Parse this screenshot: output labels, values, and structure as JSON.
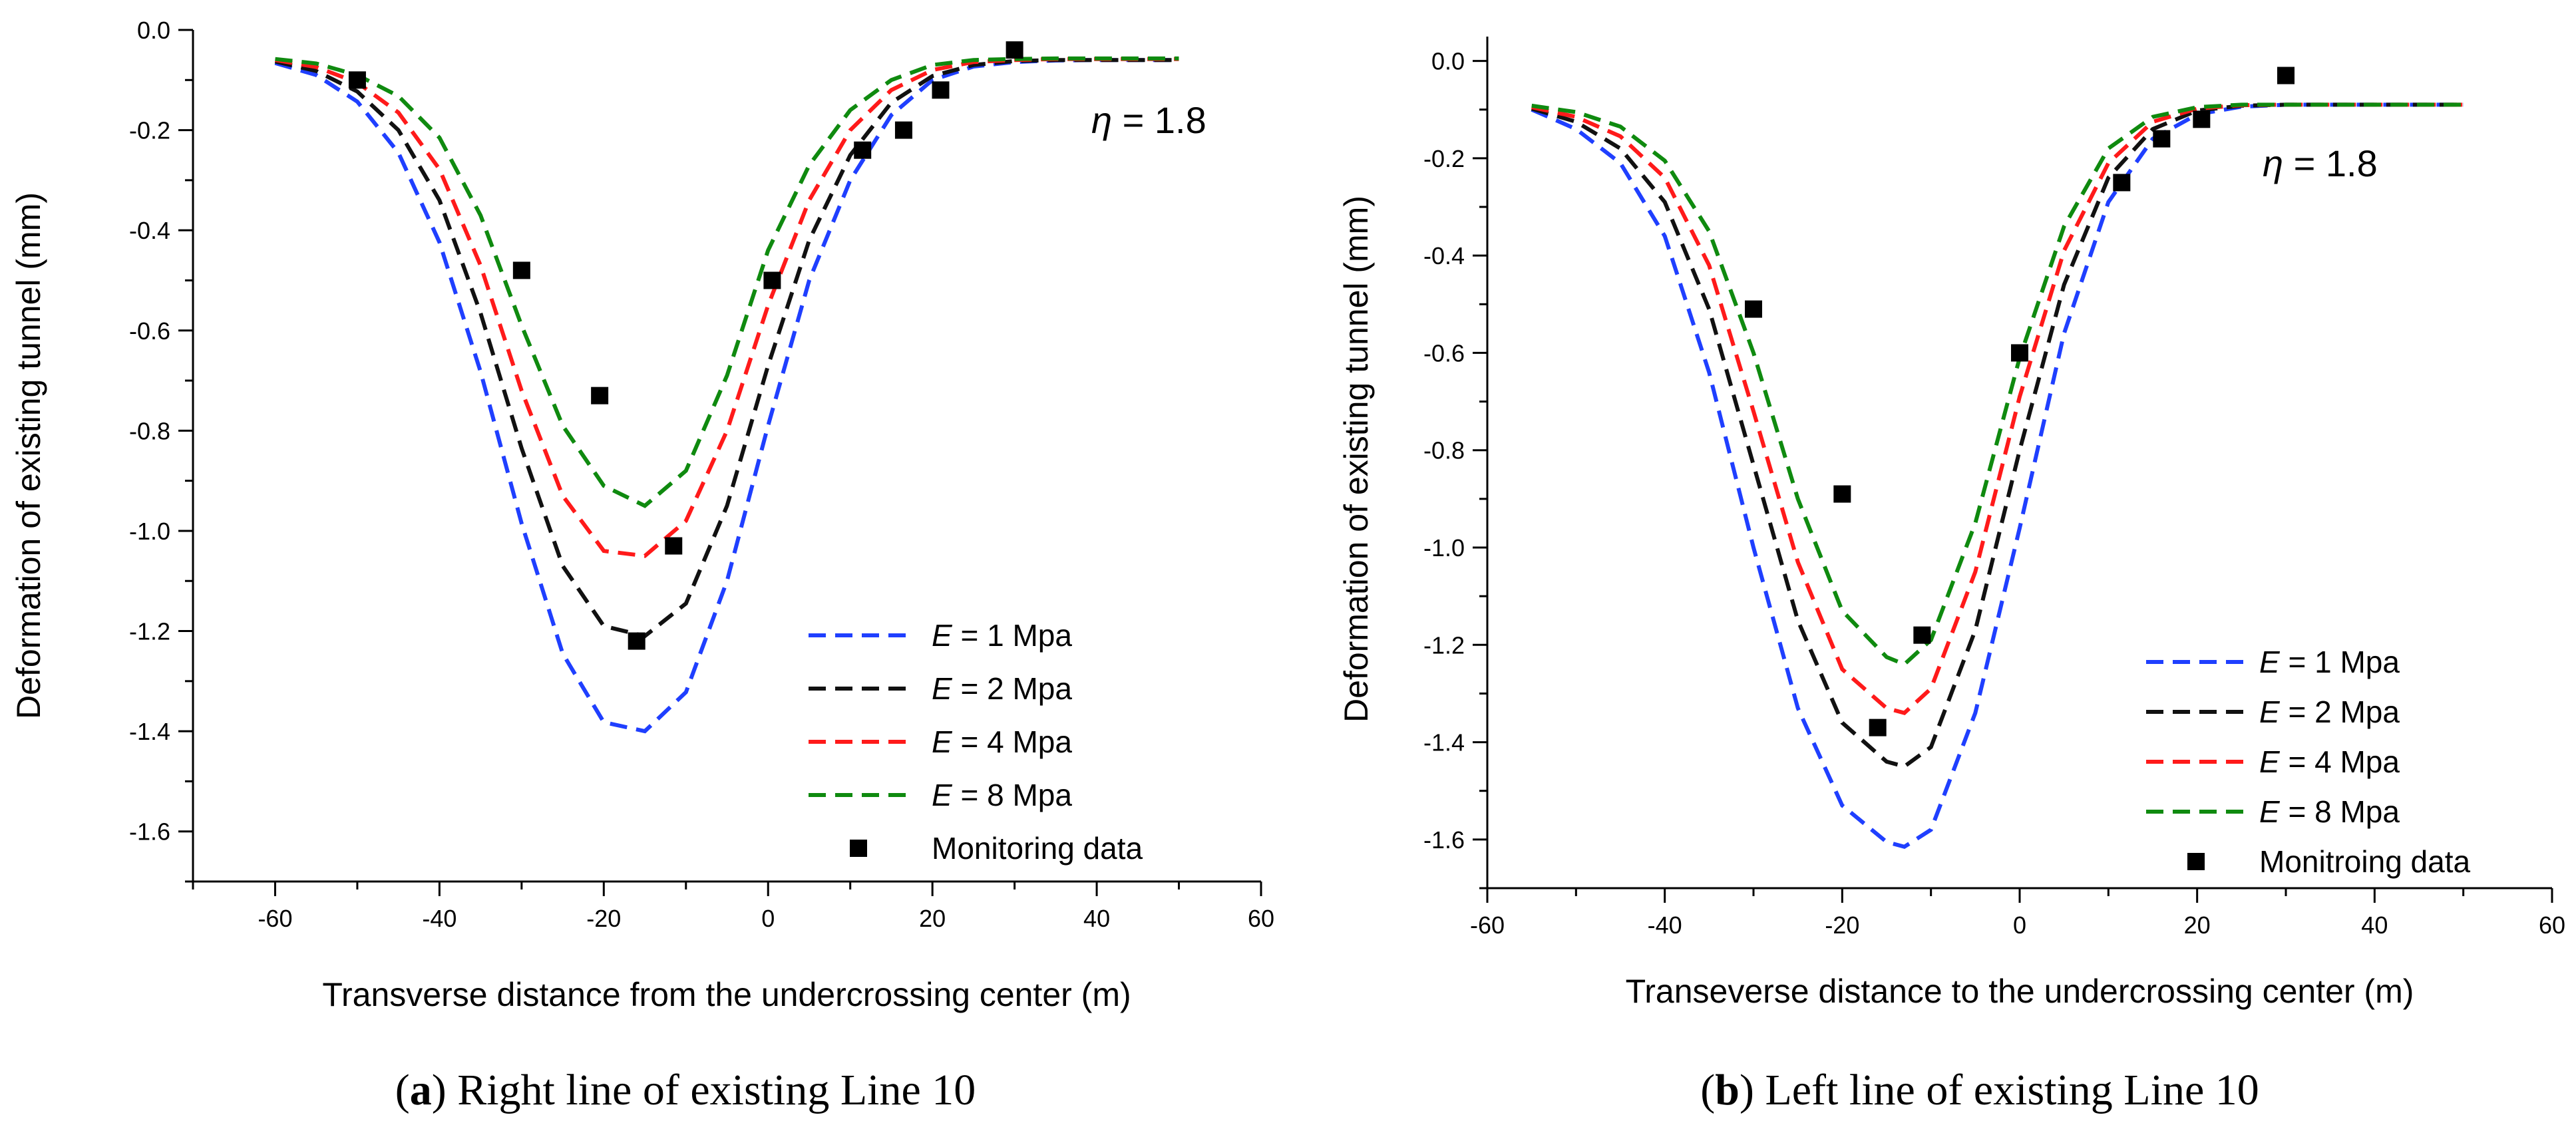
{
  "chart_data": [
    {
      "type": "line",
      "caption_letter": "a",
      "caption_text": " Right line of existing Line 10",
      "xlabel": "Transverse distance from the undercrossing center (m)",
      "ylabel": "Deformation of existing tunnel (mm)",
      "xlim": [
        -70,
        60
      ],
      "ylim": [
        -1.7,
        0.0
      ],
      "xticks": [
        -60,
        -40,
        -20,
        0,
        20,
        40,
        60
      ],
      "yticks": [
        0.0,
        -0.2,
        -0.4,
        -0.6,
        -0.8,
        -1.0,
        -1.2,
        -1.4,
        -1.6
      ],
      "xtick_labels": [
        "-60",
        "-40",
        "-20",
        "0",
        "20",
        "40",
        "60"
      ],
      "ytick_labels": [
        "0.0",
        "-0.2",
        "-0.4",
        "-0.6",
        "-0.8",
        "-1.0",
        "-1.2",
        "-1.4",
        "-1.6"
      ],
      "annotation": {
        "symbol": "η",
        "text": " = 1.8"
      },
      "series": [
        {
          "name": "E = 1 Mpa",
          "var": "E",
          "rest": " = 1 Mpa",
          "color": "#1f3fff",
          "x": [
            -60,
            -55,
            -50,
            -45,
            -40,
            -35,
            -30,
            -25,
            -20,
            -15,
            -10,
            -5,
            0,
            5,
            10,
            15,
            20,
            25,
            30,
            35,
            40,
            45,
            50
          ],
          "y": [
            -0.066,
            -0.09,
            -0.143,
            -0.245,
            -0.424,
            -0.682,
            -0.985,
            -1.245,
            -1.382,
            -1.4,
            -1.322,
            -1.1,
            -0.79,
            -0.5,
            -0.3,
            -0.17,
            -0.1,
            -0.073,
            -0.064,
            -0.061,
            -0.06,
            -0.06,
            -0.06
          ]
        },
        {
          "name": "E = 2 Mpa",
          "var": "E",
          "rest": " = 2 Mpa",
          "color": "#111111",
          "x": [
            -60,
            -55,
            -50,
            -45,
            -40,
            -35,
            -30,
            -25,
            -20,
            -15,
            -10,
            -5,
            0,
            5,
            10,
            15,
            20,
            25,
            30,
            35,
            40,
            45,
            50
          ],
          "y": [
            -0.063,
            -0.082,
            -0.123,
            -0.2,
            -0.34,
            -0.565,
            -0.835,
            -1.07,
            -1.19,
            -1.21,
            -1.145,
            -0.95,
            -0.67,
            -0.42,
            -0.25,
            -0.145,
            -0.092,
            -0.07,
            -0.062,
            -0.06,
            -0.06,
            -0.06,
            -0.06
          ]
        },
        {
          "name": "E = 4 Mpa",
          "var": "E",
          "rest": " = 4 Mpa",
          "color": "#ff1a1a",
          "x": [
            -60,
            -55,
            -50,
            -45,
            -40,
            -35,
            -30,
            -25,
            -20,
            -15,
            -10,
            -5,
            0,
            5,
            10,
            15,
            20,
            25,
            30,
            35,
            40,
            45,
            50
          ],
          "y": [
            -0.06,
            -0.074,
            -0.105,
            -0.165,
            -0.278,
            -0.47,
            -0.72,
            -0.93,
            -1.04,
            -1.05,
            -0.98,
            -0.8,
            -0.55,
            -0.34,
            -0.2,
            -0.12,
            -0.08,
            -0.064,
            -0.06,
            -0.058,
            -0.058,
            -0.058,
            -0.058
          ]
        },
        {
          "name": "E = 8 Mpa",
          "var": "E",
          "rest": " = 8 Mpa",
          "color": "#0f8a0f",
          "x": [
            -60,
            -55,
            -50,
            -45,
            -40,
            -35,
            -30,
            -25,
            -20,
            -15,
            -10,
            -5,
            0,
            5,
            10,
            15,
            20,
            25,
            30,
            35,
            40,
            45,
            50
          ],
          "y": [
            -0.058,
            -0.067,
            -0.09,
            -0.132,
            -0.215,
            -0.37,
            -0.59,
            -0.79,
            -0.91,
            -0.95,
            -0.88,
            -0.69,
            -0.44,
            -0.27,
            -0.16,
            -0.1,
            -0.07,
            -0.06,
            -0.058,
            -0.057,
            -0.057,
            -0.057,
            -0.057
          ]
        }
      ],
      "markers": {
        "name": "Monitoring data",
        "color": "#000000",
        "x": [
          -50,
          -30,
          -20.5,
          -16,
          -11.5,
          0.5,
          11.5,
          16.5,
          21,
          30
        ],
        "y": [
          -0.1,
          -0.48,
          -0.73,
          -1.22,
          -1.03,
          -0.5,
          -0.24,
          -0.2,
          -0.12,
          -0.04
        ]
      }
    },
    {
      "type": "line",
      "caption_letter": "b",
      "caption_text": " Left line of existing Line 10",
      "xlabel": "Transeverse distance to the undercrossing center (m)",
      "ylabel": "Deformation of existing tunnel (mm)",
      "xlim": [
        -60,
        60
      ],
      "ylim": [
        -1.7,
        0.05
      ],
      "xticks": [
        -60,
        -40,
        -20,
        0,
        20,
        40,
        60
      ],
      "yticks": [
        0.0,
        -0.2,
        -0.4,
        -0.6,
        -0.8,
        -1.0,
        -1.2,
        -1.4,
        -1.6
      ],
      "xtick_labels": [
        "-60",
        "-40",
        "-20",
        "0",
        "20",
        "40",
        "60"
      ],
      "ytick_labels": [
        "0.0",
        "-0.2",
        "-0.4",
        "-0.6",
        "-0.8",
        "-1.0",
        "-1.2",
        "-1.4",
        "-1.6"
      ],
      "annotation": {
        "symbol": "η",
        "text": " = 1.8"
      },
      "series": [
        {
          "name": "E = 1 Mpa",
          "var": "E",
          "rest": " = 1 Mpa",
          "color": "#1f3fff",
          "x": [
            -55,
            -50,
            -45,
            -40,
            -35,
            -30,
            -25,
            -20,
            -15,
            -13,
            -10,
            -5,
            0,
            5,
            10,
            15,
            20,
            25,
            30,
            35,
            40,
            45,
            50
          ],
          "y": [
            -0.1,
            -0.14,
            -0.21,
            -0.36,
            -0.64,
            -1.0,
            -1.33,
            -1.53,
            -1.605,
            -1.615,
            -1.58,
            -1.34,
            -0.96,
            -0.56,
            -0.29,
            -0.16,
            -0.11,
            -0.094,
            -0.09,
            -0.09,
            -0.09,
            -0.09,
            -0.09
          ]
        },
        {
          "name": "E = 2 Mpa",
          "var": "E",
          "rest": " = 2 Mpa",
          "color": "#111111",
          "x": [
            -55,
            -50,
            -45,
            -40,
            -35,
            -30,
            -25,
            -20,
            -15,
            -13,
            -10,
            -5,
            0,
            5,
            10,
            15,
            20,
            25,
            30,
            35,
            40,
            45,
            50
          ],
          "y": [
            -0.098,
            -0.125,
            -0.18,
            -0.29,
            -0.51,
            -0.83,
            -1.15,
            -1.36,
            -1.44,
            -1.45,
            -1.41,
            -1.17,
            -0.8,
            -0.46,
            -0.24,
            -0.14,
            -0.102,
            -0.092,
            -0.09,
            -0.09,
            -0.09,
            -0.09,
            -0.09
          ]
        },
        {
          "name": "E = 4 Mpa",
          "var": "E",
          "rest": " = 4 Mpa",
          "color": "#ff1a1a",
          "x": [
            -55,
            -50,
            -45,
            -40,
            -35,
            -30,
            -25,
            -20,
            -15,
            -13,
            -10,
            -5,
            0,
            5,
            10,
            15,
            20,
            25,
            30,
            35,
            40,
            45,
            50
          ],
          "y": [
            -0.095,
            -0.115,
            -0.155,
            -0.24,
            -0.42,
            -0.72,
            -1.03,
            -1.25,
            -1.33,
            -1.34,
            -1.29,
            -1.05,
            -0.69,
            -0.39,
            -0.21,
            -0.125,
            -0.098,
            -0.091,
            -0.09,
            -0.09,
            -0.09,
            -0.09,
            -0.09
          ]
        },
        {
          "name": "E = 8 Mpa",
          "var": "E",
          "rest": " = 8 Mpa",
          "color": "#0f8a0f",
          "x": [
            -55,
            -50,
            -45,
            -40,
            -35,
            -30,
            -25,
            -20,
            -15,
            -13,
            -10,
            -5,
            0,
            5,
            10,
            15,
            20,
            25,
            30,
            35,
            40,
            45,
            50
          ],
          "y": [
            -0.092,
            -0.105,
            -0.135,
            -0.205,
            -0.35,
            -0.6,
            -0.9,
            -1.13,
            -1.225,
            -1.24,
            -1.19,
            -0.95,
            -0.61,
            -0.34,
            -0.18,
            -0.115,
            -0.095,
            -0.09,
            -0.09,
            -0.09,
            -0.09,
            -0.09,
            -0.09
          ]
        }
      ],
      "markers": {
        "name": "Monitroing data",
        "color": "#000000",
        "x": [
          -30,
          -20,
          -16,
          -11,
          0,
          11.5,
          16,
          20.5,
          30
        ],
        "y": [
          -0.51,
          -0.89,
          -1.37,
          -1.18,
          -0.6,
          -0.25,
          -0.16,
          -0.12,
          -0.03
        ]
      }
    }
  ]
}
